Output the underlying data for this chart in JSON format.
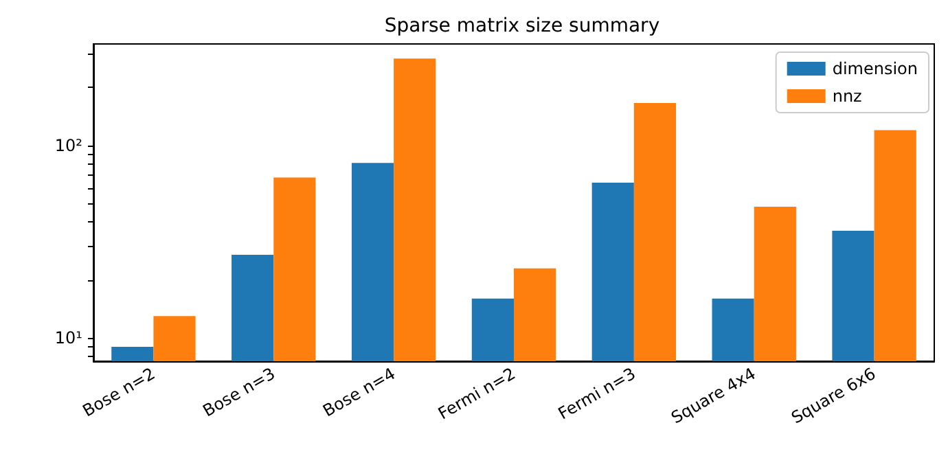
{
  "chart_data": {
    "type": "bar",
    "title": "Sparse matrix size summary",
    "categories": [
      "Bose n=2",
      "Bose n=3",
      "Bose n=4",
      "Fermi n=2",
      "Fermi n=3",
      "Square 4x4",
      "Square 6x6"
    ],
    "series": [
      {
        "name": "dimension",
        "color": "#1f77b4",
        "values": [
          9,
          27,
          81,
          16,
          64,
          16,
          36
        ]
      },
      {
        "name": "nnz",
        "color": "#ff7f0e",
        "values": [
          13,
          68,
          282,
          23,
          166,
          48,
          120
        ]
      }
    ],
    "log": "y",
    "ylim": [
      7.57,
      336
    ],
    "yticks": [
      {
        "value": 8,
        "label": null
      },
      {
        "value": 9,
        "label": null
      },
      {
        "value": 10,
        "label": "10¹"
      },
      {
        "value": 20,
        "label": null
      },
      {
        "value": 30,
        "label": null
      },
      {
        "value": 40,
        "label": null
      },
      {
        "value": 50,
        "label": null
      },
      {
        "value": 60,
        "label": null
      },
      {
        "value": 70,
        "label": null
      },
      {
        "value": 80,
        "label": null
      },
      {
        "value": 90,
        "label": null
      },
      {
        "value": 100,
        "label": "10²"
      },
      {
        "value": 200,
        "label": null
      },
      {
        "value": 300,
        "label": null
      }
    ],
    "grid": false,
    "legend": "top right"
  }
}
